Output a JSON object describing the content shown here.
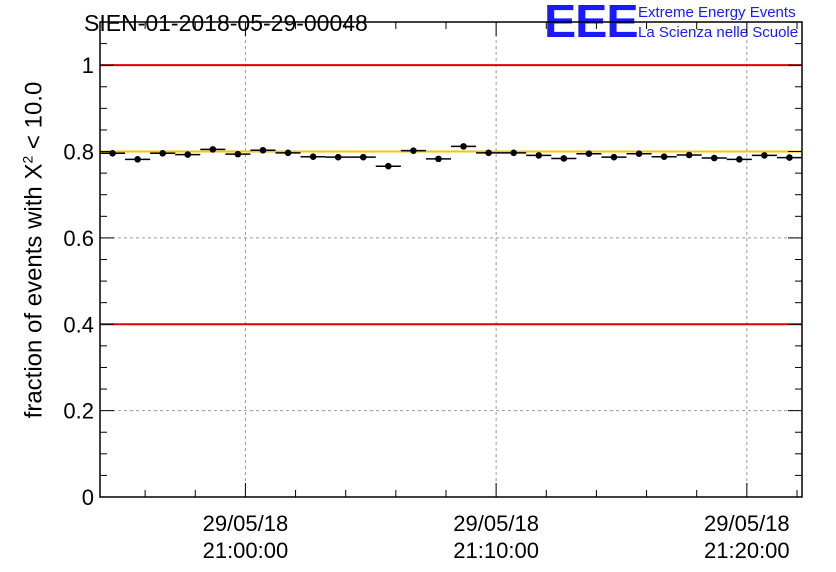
{
  "title": "SIEN-01-2018-05-29-00048",
  "logo": {
    "mark": "EEE",
    "line1": "Extreme Energy Events",
    "line2": "La Scienza nelle Scuole"
  },
  "colors": {
    "limit_line": "#e00000",
    "reference_line": "#ffc000",
    "points": "#000000",
    "logo": "#1a1aff"
  },
  "chart_data": {
    "type": "scatter",
    "title": "SIEN-01-2018-05-29-00048",
    "ylabel_prefix": "fraction of events with ",
    "ylabel_symbol": "X",
    "ylabel_exponent": "2",
    "ylabel_suffix": " < 10.0",
    "xlabel": "",
    "ylim": [
      0,
      1.1
    ],
    "yticks": [
      "0",
      "0.2",
      "0.4",
      "0.6",
      "0.8",
      "1"
    ],
    "ytick_values": [
      0,
      0.2,
      0.4,
      0.6,
      0.8,
      1.0
    ],
    "xlim_minutes": [
      -5.8,
      22.2
    ],
    "xticks": [
      {
        "minute": 0,
        "date": "29/05/18",
        "time": "21:00:00"
      },
      {
        "minute": 10,
        "date": "29/05/18",
        "time": "21:10:00"
      },
      {
        "minute": 20,
        "date": "29/05/18",
        "time": "21:20:00"
      }
    ],
    "grid": true,
    "limit_lines": [
      0.4,
      1.0
    ],
    "reference_line": 0.8,
    "bin_width_minutes": 1,
    "series": [
      {
        "name": "fraction",
        "x_minutes": [
          -5.3,
          -4.3,
          -3.3,
          -2.3,
          -1.3,
          -0.3,
          0.7,
          1.7,
          2.7,
          3.7,
          4.7,
          5.7,
          6.7,
          7.7,
          8.7,
          9.7,
          10.7,
          11.7,
          12.7,
          13.7,
          14.7,
          15.7,
          16.7,
          17.7,
          18.7,
          19.7,
          20.7,
          21.7
        ],
        "values": [
          0.796,
          0.782,
          0.796,
          0.793,
          0.805,
          0.794,
          0.803,
          0.797,
          0.788,
          0.787,
          0.787,
          0.766,
          0.802,
          0.783,
          0.812,
          0.797,
          0.797,
          0.791,
          0.784,
          0.795,
          0.787,
          0.795,
          0.788,
          0.792,
          0.785,
          0.782,
          0.791,
          0.786
        ]
      }
    ]
  }
}
